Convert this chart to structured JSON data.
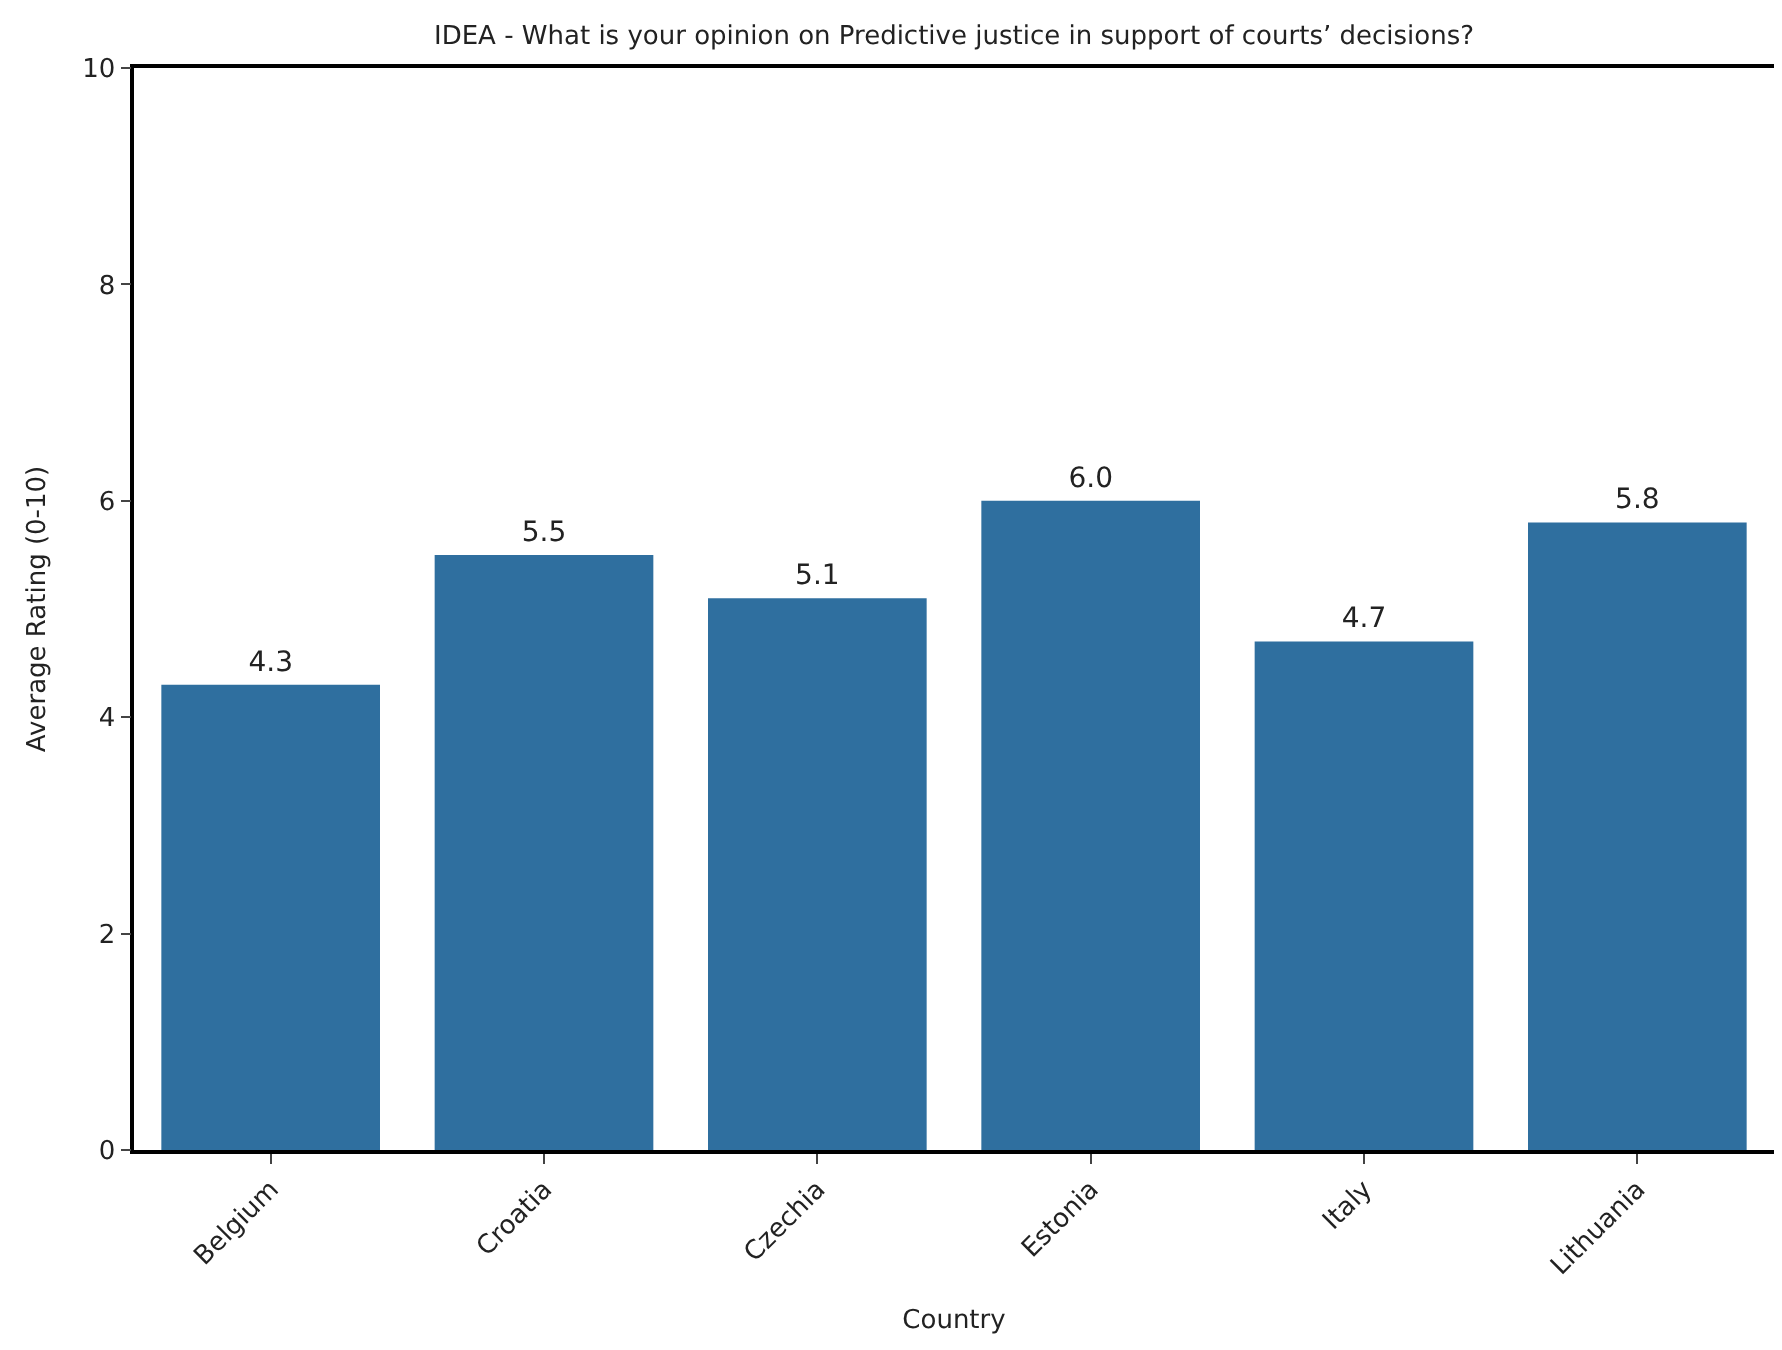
{
  "chart_data": {
    "type": "bar",
    "title": "IDEA - What is your opinion on Predictive justice in support of courts’ decisions?",
    "xlabel": "Country",
    "ylabel": "Average Rating (0-10)",
    "categories": [
      "Belgium",
      "Croatia",
      "Czechia",
      "Estonia",
      "Italy",
      "Lithuania"
    ],
    "values": [
      4.3,
      5.5,
      5.1,
      6.0,
      4.7,
      5.8
    ],
    "value_labels": [
      "4.3",
      "5.5",
      "5.1",
      "6.0",
      "4.7",
      "5.8"
    ],
    "color": "#2f6f9f",
    "ylim": [
      0,
      10
    ],
    "yticks": [
      0,
      2,
      4,
      6,
      8,
      10
    ]
  }
}
